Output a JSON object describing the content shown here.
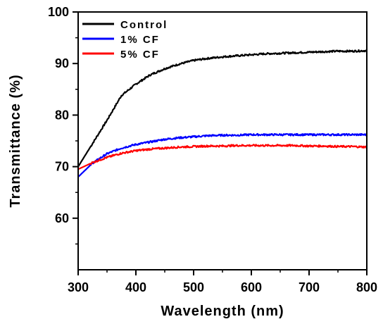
{
  "chart_data": {
    "type": "line",
    "title": "",
    "xlabel": "Wavelength (nm)",
    "ylabel": "Transmittance (%)",
    "xlim": [
      300,
      800
    ],
    "ylim": [
      50,
      100
    ],
    "xticks": [
      300,
      400,
      500,
      600,
      700,
      800
    ],
    "yticks": [
      60,
      70,
      80,
      90,
      100
    ],
    "x_tick_labels": [
      "300",
      "400",
      "500",
      "600",
      "700",
      "800"
    ],
    "y_tick_labels": [
      "60",
      "70",
      "80",
      "90",
      "100"
    ],
    "grid": false,
    "legend_position": "top-left",
    "series": [
      {
        "name": "Control",
        "color": "#000000",
        "x": [
          300,
          325,
          350,
          375,
          400,
          425,
          450,
          475,
          500,
          525,
          550,
          575,
          600,
          625,
          650,
          675,
          700,
          725,
          750,
          775,
          800
        ],
        "y": [
          70.0,
          74.5,
          79.0,
          83.8,
          86.0,
          87.8,
          89.0,
          89.9,
          90.6,
          91.0,
          91.3,
          91.5,
          91.7,
          91.9,
          92.0,
          92.1,
          92.2,
          92.3,
          92.4,
          92.4,
          92.5
        ]
      },
      {
        "name": "1% CF",
        "color": "#0000ff",
        "x": [
          300,
          325,
          350,
          375,
          400,
          425,
          450,
          475,
          500,
          525,
          550,
          575,
          600,
          625,
          650,
          675,
          700,
          725,
          750,
          775,
          800
        ],
        "y": [
          68.0,
          70.7,
          72.5,
          73.6,
          74.3,
          74.8,
          75.3,
          75.6,
          75.8,
          76.0,
          76.1,
          76.1,
          76.2,
          76.2,
          76.2,
          76.2,
          76.2,
          76.2,
          76.2,
          76.2,
          76.2
        ]
      },
      {
        "name": "5% CF",
        "color": "#ff0000",
        "x": [
          300,
          325,
          350,
          375,
          400,
          425,
          450,
          475,
          500,
          525,
          550,
          575,
          600,
          625,
          650,
          675,
          700,
          725,
          750,
          775,
          800
        ],
        "y": [
          69.5,
          70.8,
          71.8,
          72.6,
          73.1,
          73.4,
          73.6,
          73.8,
          73.9,
          74.0,
          74.0,
          74.1,
          74.1,
          74.1,
          74.1,
          74.1,
          74.0,
          74.0,
          73.9,
          73.9,
          73.8
        ]
      }
    ]
  }
}
